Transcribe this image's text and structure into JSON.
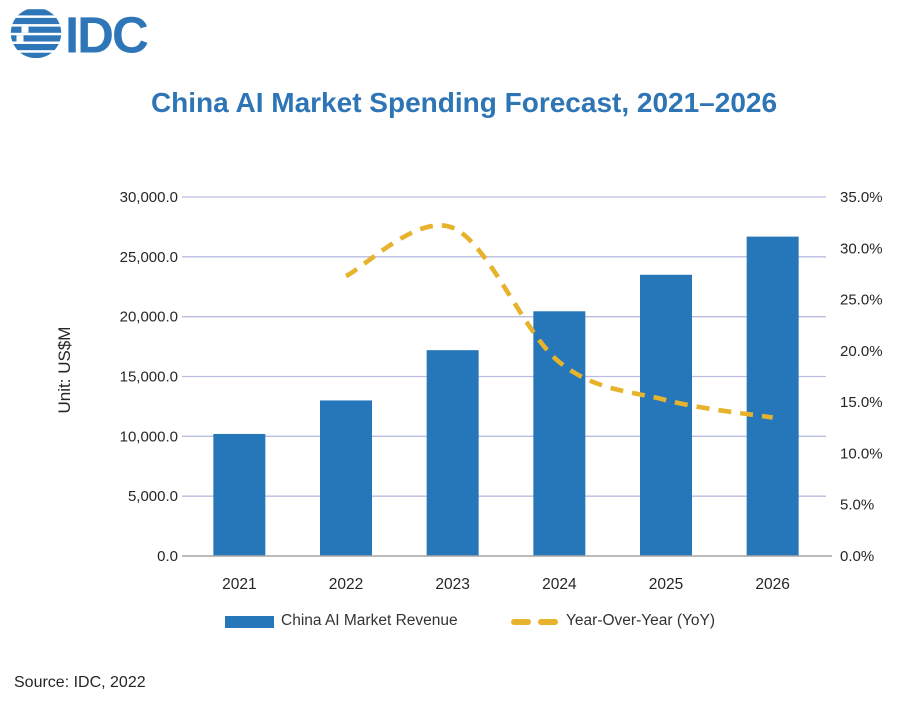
{
  "logo": {
    "text": "IDC",
    "color": "#2E76B8"
  },
  "title": "China AI Market Spending Forecast, 2021–2026",
  "title_color": "#2E75B6",
  "source": "Source: IDC, 2022",
  "legend": {
    "items": [
      {
        "label": "China AI Market Revenue",
        "swatch": "bar",
        "color": "#2577B9"
      },
      {
        "label": "Year-Over-Year (YoY)",
        "swatch": "dashed-line",
        "color": "#E7B32C"
      }
    ],
    "position": "bottom"
  },
  "chart_data": {
    "type": "bar",
    "subtype": "combo-bar-line",
    "title": "China AI Market Spending Forecast, 2021–2026",
    "categories": [
      "2021",
      "2022",
      "2023",
      "2024",
      "2025",
      "2026"
    ],
    "series": [
      {
        "name": "China AI Market Revenue",
        "type": "bar",
        "axis": "left",
        "unit": "US$M",
        "values": [
          10200,
          13000,
          17200,
          20450,
          23500,
          26690
        ],
        "color": "#2577B9"
      },
      {
        "name": "Year-Over-Year (YoY)",
        "type": "line",
        "style": "dashed",
        "smooth": true,
        "axis": "right",
        "unit": "%",
        "values": [
          null,
          27.3,
          32.0,
          18.9,
          15.2,
          13.5
        ],
        "color": "#E7B32C"
      }
    ],
    "left_axis": {
      "title": "Unit: US$M",
      "min": 0,
      "max": 30000,
      "step": 5000,
      "tick_labels": [
        "0.0",
        "5,000.0",
        "10,000.0",
        "15,000.0",
        "20,000.0",
        "25,000.0",
        "30,000.0"
      ]
    },
    "right_axis": {
      "min": 0,
      "max": 35,
      "step": 5,
      "tick_labels": [
        "0.0%",
        "5.0%",
        "10.0%",
        "15.0%",
        "20.0%",
        "25.0%",
        "30.0%",
        "35.0%"
      ]
    },
    "gridlines": true,
    "colors": {
      "bar": "#2577B9",
      "line": "#E7B32C",
      "gridline": "#B9BDE0",
      "baseline": "#A6A6A6",
      "tick_text": "#262626"
    }
  }
}
